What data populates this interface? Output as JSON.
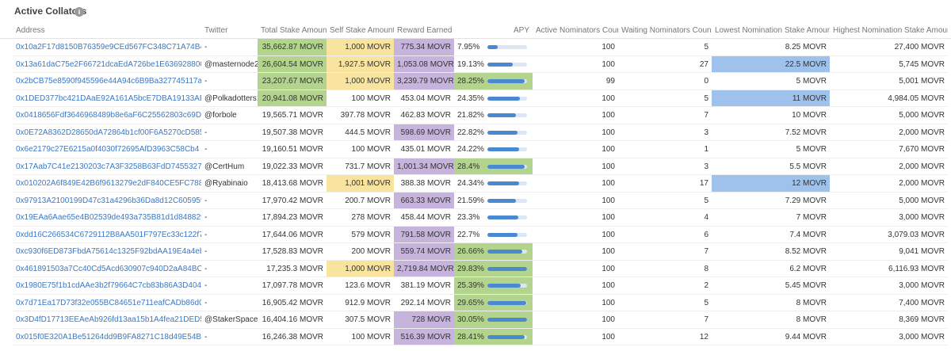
{
  "header": {
    "title": "Active Collators",
    "info_icon": "i"
  },
  "table": {
    "columns": [
      {
        "label": "Address"
      },
      {
        "label": "Twitter"
      },
      {
        "label": "Total Stake Amount",
        "highlight": "#b3d48d"
      },
      {
        "label": "Self Stake Amount",
        "highlight": "#f8e39f"
      },
      {
        "label": "Reward Earned",
        "highlight": "#c6b4dc"
      },
      {
        "label": "APY",
        "highlight": "#b3d48d"
      },
      {
        "label": "Active Nominators Count"
      },
      {
        "label": "Waiting Nominators Count"
      },
      {
        "label": "Lowest Nomination Stake Amount",
        "highlight": "#9fc2ec"
      },
      {
        "label": "Highest Nomination Stake Amount"
      }
    ],
    "rows": [
      {
        "cells": [
          "0x10a2F17d8150B76359e9CEd567FC348C71A74B46",
          "-",
          "35,662.87 MOVR",
          "1,000 MOVR",
          "775.34 MOVR",
          "7.95%",
          "100",
          "5",
          "8.25 MOVR",
          "27,400 MOVR"
        ],
        "highlighted": [
          2,
          3,
          4
        ]
      },
      {
        "cells": [
          "0x13a61daC75e2F66721dcaEdA726be1E636928800",
          "@masternode24",
          "26,604.54 MOVR",
          "1,927.5 MOVR",
          "1,053.08 MOVR",
          "19.13%",
          "100",
          "27",
          "22.5 MOVR",
          "5,745 MOVR"
        ],
        "highlighted": [
          2,
          3,
          4,
          8
        ]
      },
      {
        "cells": [
          "0x2bCB75e8590f945596e44A94c6B9Ba327745117a",
          "-",
          "23,207.67 MOVR",
          "1,000 MOVR",
          "3,239.79 MOVR",
          "28.25%",
          "99",
          "0",
          "5 MOVR",
          "5,001 MOVR"
        ],
        "highlighted": [
          2,
          3,
          4,
          5
        ]
      },
      {
        "cells": [
          "0x1DED377bc421DAaE92A161A5bcE7DBA19133AB5d",
          "@Polkadotters1",
          "20,941.08 MOVR",
          "100 MOVR",
          "453.04 MOVR",
          "24.35%",
          "100",
          "5",
          "11 MOVR",
          "4,984.05 MOVR"
        ],
        "highlighted": [
          2,
          8
        ]
      },
      {
        "cells": [
          "0x0418656Fdf3646968489b8e6aF6C25562803c69D",
          "@forbole",
          "19,565.71 MOVR",
          "397.78 MOVR",
          "462.83 MOVR",
          "21.82%",
          "100",
          "7",
          "10 MOVR",
          "5,000 MOVR"
        ],
        "highlighted": []
      },
      {
        "cells": [
          "0x0E72A8362D28650dA72864b1cf00F6A5270cD585",
          "-",
          "19,507.38 MOVR",
          "444.5 MOVR",
          "598.69 MOVR",
          "22.82%",
          "100",
          "3",
          "7.52 MOVR",
          "2,000 MOVR"
        ],
        "highlighted": [
          4
        ]
      },
      {
        "cells": [
          "0x6e2179c27E6215a0f4030f72695AfD3963C58Cb4",
          "-",
          "19,160.51 MOVR",
          "100 MOVR",
          "435.01 MOVR",
          "24.22%",
          "100",
          "1",
          "5 MOVR",
          "7,670 MOVR"
        ],
        "highlighted": []
      },
      {
        "cells": [
          "0x17Aab7C41e2130203c7A3F3258B63FdD74553274",
          "@CertHum",
          "19,022.33 MOVR",
          "731.7 MOVR",
          "1,001.34 MOVR",
          "28.4%",
          "100",
          "3",
          "5.5 MOVR",
          "2,000 MOVR"
        ],
        "highlighted": [
          4,
          5
        ]
      },
      {
        "cells": [
          "0x010202A6f849E42B6f9613279e2dF840CE5FC788",
          "@Ryabinaio",
          "18,413.68 MOVR",
          "1,001 MOVR",
          "388.38 MOVR",
          "24.34%",
          "100",
          "17",
          "12 MOVR",
          "2,000 MOVR"
        ],
        "highlighted": [
          3,
          8
        ]
      },
      {
        "cells": [
          "0x97913A2100199D47c31a4296b36Da8d12C605959",
          "-",
          "17,970.42 MOVR",
          "200.7 MOVR",
          "663.33 MOVR",
          "21.59%",
          "100",
          "5",
          "7.29 MOVR",
          "5,000 MOVR"
        ],
        "highlighted": [
          4
        ]
      },
      {
        "cells": [
          "0x19EAa6Aae65e4B02539de493a735B81d1d848829",
          "-",
          "17,894.23 MOVR",
          "278 MOVR",
          "458.44 MOVR",
          "23.3%",
          "100",
          "4",
          "7 MOVR",
          "3,000 MOVR"
        ],
        "highlighted": []
      },
      {
        "cells": [
          "0xdd16C266534C6729112B8AA501F797Ec33c122f7",
          "-",
          "17,644.06 MOVR",
          "579 MOVR",
          "791.58 MOVR",
          "22.7%",
          "100",
          "6",
          "7.4 MOVR",
          "3,079.03 MOVR"
        ],
        "highlighted": [
          4
        ]
      },
      {
        "cells": [
          "0xc930f6ED873FbdA75614c1325F92bdAA19E4a4eb",
          "-",
          "17,528.83 MOVR",
          "200 MOVR",
          "559.74 MOVR",
          "26.66%",
          "100",
          "7",
          "8.52 MOVR",
          "9,041 MOVR"
        ],
        "highlighted": [
          4,
          5
        ]
      },
      {
        "cells": [
          "0x461891503a7Cc40Cd5Acd630907c940D2aA84BC8",
          "-",
          "17,235.3 MOVR",
          "1,000 MOVR",
          "2,719.84 MOVR",
          "29.83%",
          "100",
          "8",
          "6.2 MOVR",
          "6,116.93 MOVR"
        ],
        "highlighted": [
          3,
          4,
          5
        ]
      },
      {
        "cells": [
          "0x1980E75f1b1cdAAe3b2f79664C7cb83b86A3D404",
          "-",
          "17,097.78 MOVR",
          "123.6 MOVR",
          "381.19 MOVR",
          "25.39%",
          "100",
          "2",
          "5.45 MOVR",
          "3,000 MOVR"
        ],
        "highlighted": [
          5
        ]
      },
      {
        "cells": [
          "0x7d71Ea17D73f32e055BC84651e711eafCADb86d0",
          "-",
          "16,905.42 MOVR",
          "912.9 MOVR",
          "292.14 MOVR",
          "29.65%",
          "100",
          "5",
          "8 MOVR",
          "7,400 MOVR"
        ],
        "highlighted": [
          5
        ]
      },
      {
        "cells": [
          "0x3D4fD17713EEAeAb926fd13aa15b1A4fea21DED5",
          "@StakerSpace",
          "16,404.16 MOVR",
          "307.5 MOVR",
          "728 MOVR",
          "30.05%",
          "100",
          "7",
          "8 MOVR",
          "8,369 MOVR"
        ],
        "highlighted": [
          4,
          5
        ]
      },
      {
        "cells": [
          "0x015f0E320A1Be51264dd9B9FA8271C18d49E54BB",
          "-",
          "16,246.38 MOVR",
          "100 MOVR",
          "516.39 MOVR",
          "28.41%",
          "100",
          "12",
          "9.44 MOVR",
          "3,000 MOVR"
        ],
        "highlighted": [
          4,
          5
        ]
      }
    ]
  }
}
